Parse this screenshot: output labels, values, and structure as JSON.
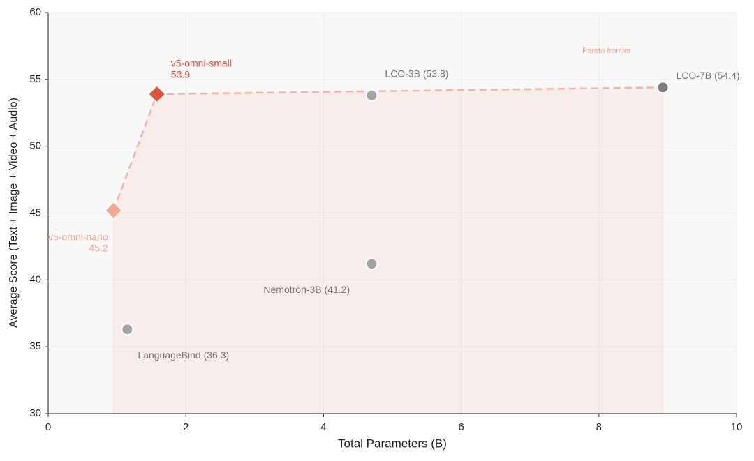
{
  "chart_data": {
    "type": "scatter",
    "xlabel": "Total Parameters (B)",
    "ylabel": "Average Score (Text + Image + Video + Audio)",
    "annotation": "Pareto frontier",
    "xlim": [
      0,
      10
    ],
    "xticks": [
      0,
      2,
      4,
      6,
      8,
      10
    ],
    "ylim": [
      30,
      60
    ],
    "yticks": [
      30,
      35,
      40,
      45,
      50,
      55,
      60
    ],
    "grid": true,
    "frontier_color": "#f2b4a4",
    "points": [
      {
        "label": "v5-omni-nano",
        "value_label": "45.2",
        "x": 0.95,
        "y": 45.2,
        "marker": "diamond",
        "color": "#f0a890",
        "pareto": true
      },
      {
        "label": "v5-omni-small",
        "value_label": "53.9",
        "x": 1.58,
        "y": 53.9,
        "marker": "diamond",
        "color": "#e0533d",
        "pareto": true
      },
      {
        "label": "LanguageBind (36.3)",
        "x": 1.15,
        "y": 36.3,
        "marker": "circle",
        "color": "#a3a3a3",
        "pareto": false
      },
      {
        "label": "Nemotron-3B (41.2)",
        "x": 4.7,
        "y": 41.2,
        "marker": "circle",
        "color": "#a3a3a3",
        "pareto": false
      },
      {
        "label": "LCO-3B (53.8)",
        "x": 4.7,
        "y": 53.8,
        "marker": "circle",
        "color": "#a3a3a3",
        "pareto": false
      },
      {
        "label": "LCO-7B (54.4)",
        "x": 8.93,
        "y": 54.4,
        "marker": "circle",
        "color": "#7f7f7f",
        "pareto": true
      }
    ]
  }
}
